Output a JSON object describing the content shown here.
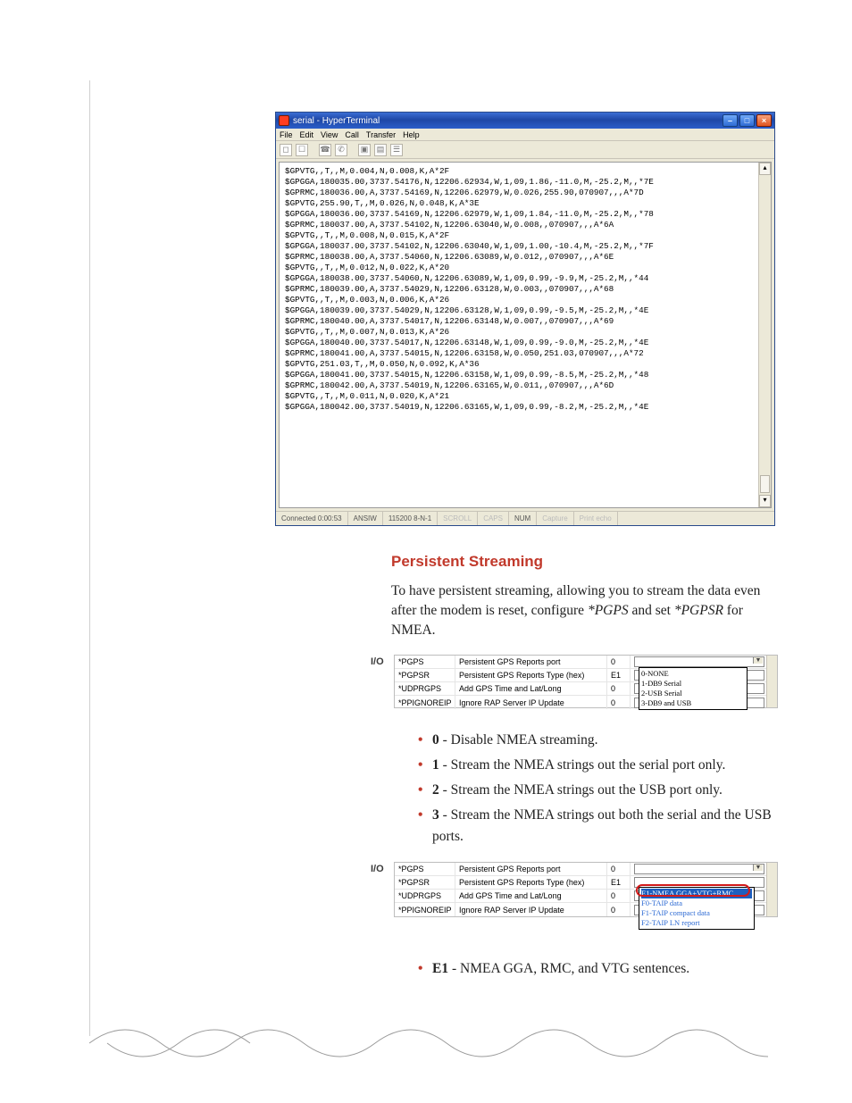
{
  "terminal": {
    "title": "serial - HyperTerminal",
    "menus": [
      "File",
      "Edit",
      "View",
      "Call",
      "Transfer",
      "Help"
    ],
    "status": {
      "connected": "Connected 0:00:53",
      "emul": "ANSIW",
      "conn": "115200 8-N-1",
      "labels": [
        "SCROLL",
        "CAPS",
        "NUM",
        "Capture",
        "Print echo"
      ]
    },
    "lines": [
      "$GPVTG,,T,,M,0.004,N,0.008,K,A*2F",
      "$GPGGA,180035.00,3737.54176,N,12206.62934,W,1,09,1.86,-11.0,M,-25.2,M,,*7E",
      "$GPRMC,180036.00,A,3737.54169,N,12206.62979,W,0.026,255.90,070907,,,A*7D",
      "$GPVTG,255.90,T,,M,0.026,N,0.048,K,A*3E",
      "$GPGGA,180036.00,3737.54169,N,12206.62979,W,1,09,1.84,-11.0,M,-25.2,M,,*78",
      "$GPRMC,180037.00,A,3737.54102,N,12206.63040,W,0.008,,070907,,,A*6A",
      "$GPVTG,,T,,M,0.008,N,0.015,K,A*2F",
      "$GPGGA,180037.00,3737.54102,N,12206.63040,W,1,09,1.00,-10.4,M,-25.2,M,,*7F",
      "$GPRMC,180038.00,A,3737.54060,N,12206.63089,W,0.012,,070907,,,A*6E",
      "$GPVTG,,T,,M,0.012,N,0.022,K,A*20",
      "$GPGGA,180038.00,3737.54060,N,12206.63089,W,1,09,0.99,-9.9,M,-25.2,M,,*44",
      "$GPRMC,180039.00,A,3737.54029,N,12206.63128,W,0.003,,070907,,,A*68",
      "$GPVTG,,T,,M,0.003,N,0.006,K,A*26",
      "$GPGGA,180039.00,3737.54029,N,12206.63128,W,1,09,0.99,-9.5,M,-25.2,M,,*4E",
      "$GPRMC,180040.00,A,3737.54017,N,12206.63148,W,0.007,,070907,,,A*69",
      "$GPVTG,,T,,M,0.007,N,0.013,K,A*26",
      "$GPGGA,180040.00,3737.54017,N,12206.63148,W,1,09,0.99,-9.0,M,-25.2,M,,*4E",
      "$GPRMC,180041.00,A,3737.54015,N,12206.63158,W,0.050,251.03,070907,,,A*72",
      "$GPVTG,251.03,T,,M,0.050,N,0.092,K,A*36",
      "$GPGGA,180041.00,3737.54015,N,12206.63158,W,1,09,0.99,-8.5,M,-25.2,M,,*48",
      "$GPRMC,180042.00,A,3737.54019,N,12206.63165,W,0.011,,070907,,,A*6D",
      "$GPVTG,,T,,M,0.011,N,0.020,K,A*21",
      "$GPGGA,180042.00,3737.54019,N,12206.63165,W,1,09,0.99,-8.2,M,-25.2,M,,*4E"
    ]
  },
  "heading": "Persistent Streaming",
  "para1_a": "To have persistent streaming, allowing you to stream the data even after the modem is reset, configure ",
  "para1_pgps": "*PGPS",
  "para1_b": " and set ",
  "para1_pgpsr": "*PGPSR",
  "para1_c": " for NMEA.",
  "io_label": "I/O",
  "settings_rows": [
    {
      "k": "*PGPS",
      "d": "Persistent GPS Reports port",
      "v": "0"
    },
    {
      "k": "*PGPSR",
      "d": "Persistent GPS Reports Type (hex)",
      "v": "E1"
    },
    {
      "k": "*UDPRGPS",
      "d": "Add GPS Time and Lat/Long",
      "v": "0"
    },
    {
      "k": "*PPIGNOREIP",
      "d": "Ignore RAP Server IP Update",
      "v": "0"
    }
  ],
  "dd1": {
    "sel": "",
    "items": [
      "0-NONE",
      "1-DB9 Serial",
      "2-USB Serial",
      "3-DB9 and USB"
    ]
  },
  "bullets": [
    {
      "b": "0",
      "t": " - Disable NMEA streaming."
    },
    {
      "b": "1",
      "t": " - Stream the NMEA strings out the serial port only."
    },
    {
      "b": "2",
      "t": " - Stream the NMEA strings out the USB port only."
    },
    {
      "b": "3",
      "t": " - Stream the NMEA strings out both the serial and the USB ports."
    }
  ],
  "dd2": {
    "items": [
      "E1-NMEA GGA+VTG+RMC",
      "F0-TAIP data",
      "F1-TAIP compact data",
      "F2-TAIP LN report"
    ]
  },
  "bullet2": {
    "b": "E1",
    "t": " - NMEA GGA, RMC, and VTG sentences."
  },
  "colors": {
    "accent_red": "#c1392b",
    "title_blue": "#2b5ec9"
  }
}
